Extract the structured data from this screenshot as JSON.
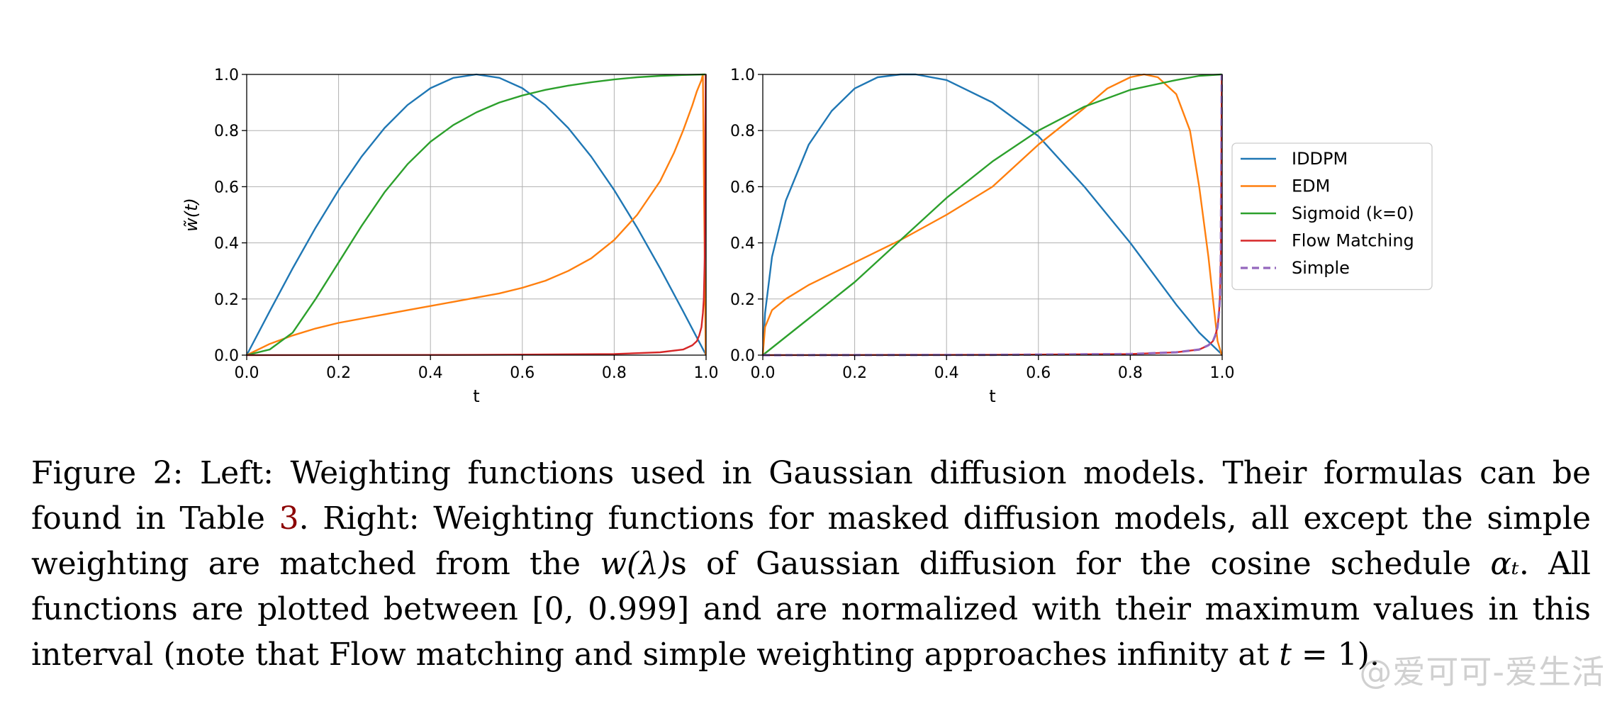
{
  "chart_data": [
    {
      "type": "line",
      "panel": "left",
      "xlabel": "t",
      "ylabel": "w̃(t)",
      "xlim": [
        0,
        1
      ],
      "ylim": [
        0,
        1
      ],
      "xticks": [
        "0.0",
        "0.2",
        "0.4",
        "0.6",
        "0.8",
        "1.0"
      ],
      "yticks": [
        "0.0",
        "0.2",
        "0.4",
        "0.6",
        "0.8",
        "1.0"
      ],
      "grid": true,
      "series": [
        {
          "name": "IDDPM",
          "color": "#1f77b4",
          "x": [
            0,
            0.05,
            0.1,
            0.15,
            0.2,
            0.25,
            0.3,
            0.35,
            0.4,
            0.45,
            0.5,
            0.55,
            0.6,
            0.65,
            0.7,
            0.75,
            0.8,
            0.85,
            0.9,
            0.95,
            0.999
          ],
          "y": [
            0,
            0.156,
            0.309,
            0.454,
            0.588,
            0.707,
            0.809,
            0.891,
            0.951,
            0.988,
            1.0,
            0.988,
            0.951,
            0.891,
            0.809,
            0.707,
            0.588,
            0.454,
            0.309,
            0.156,
            0.003
          ]
        },
        {
          "name": "EDM",
          "color": "#ff7f0e",
          "x": [
            0,
            0.05,
            0.1,
            0.15,
            0.2,
            0.25,
            0.3,
            0.35,
            0.4,
            0.45,
            0.5,
            0.55,
            0.6,
            0.65,
            0.7,
            0.75,
            0.8,
            0.85,
            0.9,
            0.93,
            0.95,
            0.97,
            0.98,
            0.99,
            0.993,
            0.999
          ],
          "y": [
            0,
            0.04,
            0.07,
            0.095,
            0.115,
            0.13,
            0.145,
            0.16,
            0.175,
            0.19,
            0.205,
            0.22,
            0.24,
            0.265,
            0.3,
            0.345,
            0.41,
            0.5,
            0.62,
            0.72,
            0.8,
            0.89,
            0.94,
            0.98,
            1.0,
            0.0
          ]
        },
        {
          "name": "Sigmoid (k=0)",
          "color": "#2ca02c",
          "x": [
            0,
            0.05,
            0.1,
            0.15,
            0.2,
            0.25,
            0.3,
            0.35,
            0.4,
            0.45,
            0.5,
            0.55,
            0.6,
            0.65,
            0.7,
            0.75,
            0.8,
            0.85,
            0.9,
            0.95,
            0.999
          ],
          "y": [
            0,
            0.02,
            0.08,
            0.2,
            0.33,
            0.46,
            0.58,
            0.68,
            0.76,
            0.82,
            0.865,
            0.9,
            0.925,
            0.945,
            0.96,
            0.972,
            0.982,
            0.99,
            0.995,
            0.998,
            1.0
          ]
        },
        {
          "name": "Flow Matching",
          "color": "#d62728",
          "x": [
            0,
            0.5,
            0.8,
            0.9,
            0.95,
            0.97,
            0.98,
            0.985,
            0.99,
            0.993,
            0.995,
            0.997,
            0.999
          ],
          "y": [
            0,
            0.001,
            0.004,
            0.01,
            0.02,
            0.035,
            0.05,
            0.07,
            0.1,
            0.15,
            0.2,
            0.35,
            1.0
          ]
        }
      ]
    },
    {
      "type": "line",
      "panel": "right",
      "xlabel": "t",
      "xlim": [
        0,
        1
      ],
      "ylim": [
        0,
        1
      ],
      "xticks": [
        "0.0",
        "0.2",
        "0.4",
        "0.6",
        "0.8",
        "1.0"
      ],
      "yticks": [
        "0.0",
        "0.2",
        "0.4",
        "0.6",
        "0.8",
        "1.0"
      ],
      "grid": true,
      "legend_position": "right",
      "series": [
        {
          "name": "IDDPM",
          "color": "#1f77b4",
          "x": [
            0,
            0.005,
            0.02,
            0.05,
            0.1,
            0.15,
            0.2,
            0.25,
            0.3,
            0.333,
            0.4,
            0.5,
            0.6,
            0.7,
            0.8,
            0.9,
            0.95,
            0.999
          ],
          "y": [
            0,
            0.15,
            0.35,
            0.55,
            0.75,
            0.87,
            0.95,
            0.99,
            1.0,
            1.0,
            0.98,
            0.9,
            0.78,
            0.6,
            0.4,
            0.18,
            0.08,
            0.003
          ]
        },
        {
          "name": "EDM",
          "color": "#ff7f0e",
          "x": [
            0,
            0.005,
            0.02,
            0.05,
            0.1,
            0.2,
            0.3,
            0.4,
            0.5,
            0.6,
            0.7,
            0.75,
            0.8,
            0.83,
            0.86,
            0.9,
            0.93,
            0.95,
            0.97,
            0.98,
            0.99,
            0.999
          ],
          "y": [
            0,
            0.1,
            0.16,
            0.2,
            0.25,
            0.33,
            0.41,
            0.5,
            0.6,
            0.75,
            0.88,
            0.95,
            0.99,
            1.0,
            0.99,
            0.93,
            0.8,
            0.6,
            0.35,
            0.2,
            0.05,
            0.0
          ]
        },
        {
          "name": "Sigmoid (k=0)",
          "color": "#2ca02c",
          "x": [
            0,
            0.1,
            0.2,
            0.3,
            0.4,
            0.5,
            0.6,
            0.7,
            0.8,
            0.9,
            0.95,
            0.999
          ],
          "y": [
            0,
            0.13,
            0.26,
            0.41,
            0.56,
            0.69,
            0.8,
            0.885,
            0.945,
            0.98,
            0.995,
            1.0
          ]
        },
        {
          "name": "Flow Matching",
          "color": "#d62728",
          "x": [
            0,
            0.5,
            0.8,
            0.9,
            0.95,
            0.97,
            0.98,
            0.985,
            0.99,
            0.993,
            0.995,
            0.997,
            0.999
          ],
          "y": [
            0,
            0.001,
            0.004,
            0.01,
            0.02,
            0.035,
            0.05,
            0.07,
            0.1,
            0.15,
            0.2,
            0.35,
            1.0
          ]
        },
        {
          "name": "Simple",
          "color": "#9467bd",
          "dashed": true,
          "x": [
            0,
            0.5,
            0.8,
            0.9,
            0.95,
            0.97,
            0.98,
            0.985,
            0.99,
            0.993,
            0.995,
            0.997,
            0.999
          ],
          "y": [
            0,
            0.001,
            0.004,
            0.01,
            0.02,
            0.035,
            0.05,
            0.07,
            0.1,
            0.15,
            0.2,
            0.35,
            1.0
          ]
        }
      ]
    }
  ],
  "caption": {
    "p1": "Figure 2: Left: Weighting functions used in Gaussian diffusion models. Their formulas can be found in Table ",
    "ref": "3",
    "p2": ". Right: Weighting functions for masked diffusion models, all except the simple weighting are matched from the ",
    "m1": "w(λ)",
    "p3": "s of Gaussian diffusion for the cosine schedule ",
    "m2": "αₜ",
    "p4": ". All functions are plotted between [0, 0.999] and are normalized with their maximum values in this interval (note that Flow matching and simple weighting approaches infinity at ",
    "m3": "t",
    "p5": " = 1)."
  },
  "watermark": "@爱可可-爱生活"
}
